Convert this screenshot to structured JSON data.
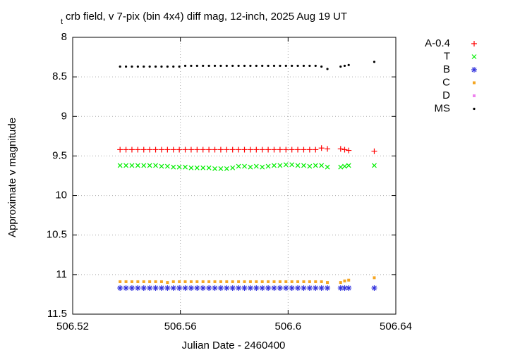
{
  "chart_data": {
    "type": "scatter",
    "title_prefix": "t",
    "title": "crb field, v 7-pix (bin 4x4) diff mag, 12-inch, 2025 Aug 19 UT",
    "x_label": "Julian Date - 2460400",
    "y_label": "Approximate v magnitude",
    "xlim": [
      506.52,
      506.64
    ],
    "xticks": [
      506.52,
      506.56,
      506.6,
      506.64
    ],
    "ylim": [
      11.5,
      8
    ],
    "yticks": [
      8,
      8.5,
      9,
      9.5,
      10,
      10.5,
      11,
      11.5
    ],
    "grid": true,
    "legend_position": "right",
    "x": [
      506.5376,
      506.5398,
      506.542,
      506.5442,
      506.5464,
      506.5486,
      506.5508,
      506.553,
      506.5552,
      506.5574,
      506.5596,
      506.5618,
      506.564,
      506.5662,
      506.5684,
      506.5706,
      506.5728,
      506.575,
      506.5772,
      506.5794,
      506.5816,
      506.5838,
      506.586,
      506.5882,
      506.5904,
      506.5926,
      506.5948,
      506.597,
      506.5992,
      506.6014,
      506.6036,
      506.6058,
      506.608,
      506.6102,
      506.6124,
      506.6146,
      506.6195,
      506.621,
      506.6225,
      506.632
    ],
    "series": [
      {
        "name": "A-0.4",
        "color": "#ff0000",
        "marker": "plus",
        "values": [
          9.42,
          9.42,
          9.42,
          9.42,
          9.42,
          9.42,
          9.42,
          9.42,
          9.42,
          9.42,
          9.42,
          9.42,
          9.42,
          9.42,
          9.42,
          9.42,
          9.42,
          9.42,
          9.42,
          9.42,
          9.42,
          9.42,
          9.42,
          9.42,
          9.42,
          9.42,
          9.42,
          9.42,
          9.42,
          9.42,
          9.42,
          9.42,
          9.42,
          9.42,
          9.4,
          9.41,
          9.41,
          9.42,
          9.43,
          9.44
        ]
      },
      {
        "name": "T",
        "color": "#00ee00",
        "marker": "cross",
        "values": [
          9.62,
          9.62,
          9.62,
          9.62,
          9.62,
          9.62,
          9.62,
          9.63,
          9.63,
          9.64,
          9.64,
          9.64,
          9.65,
          9.65,
          9.65,
          9.65,
          9.66,
          9.66,
          9.66,
          9.65,
          9.63,
          9.63,
          9.64,
          9.63,
          9.64,
          9.63,
          9.62,
          9.62,
          9.61,
          9.61,
          9.62,
          9.62,
          9.63,
          9.62,
          9.62,
          9.64,
          9.64,
          9.63,
          9.62,
          9.62
        ]
      },
      {
        "name": "B",
        "color": "#3333dd",
        "marker": "star",
        "values": [
          11.17,
          11.17,
          11.17,
          11.17,
          11.17,
          11.17,
          11.17,
          11.17,
          11.17,
          11.17,
          11.17,
          11.17,
          11.17,
          11.17,
          11.17,
          11.17,
          11.17,
          11.17,
          11.17,
          11.17,
          11.17,
          11.17,
          11.17,
          11.17,
          11.17,
          11.17,
          11.17,
          11.17,
          11.17,
          11.17,
          11.17,
          11.17,
          11.17,
          11.17,
          11.17,
          11.17,
          11.17,
          11.17,
          11.17,
          11.17
        ]
      },
      {
        "name": "C",
        "color": "#f5a623",
        "marker": "square",
        "values": [
          11.09,
          11.09,
          11.09,
          11.09,
          11.09,
          11.09,
          11.09,
          11.09,
          11.1,
          11.09,
          11.09,
          11.09,
          11.09,
          11.09,
          11.09,
          11.09,
          11.09,
          11.09,
          11.09,
          11.09,
          11.09,
          11.09,
          11.09,
          11.09,
          11.09,
          11.09,
          11.09,
          11.09,
          11.09,
          11.09,
          11.09,
          11.09,
          11.09,
          11.09,
          11.09,
          11.1,
          11.1,
          11.08,
          11.07,
          11.04
        ]
      },
      {
        "name": "D",
        "color": "#ee82ee",
        "marker": "square",
        "values": [
          null,
          null,
          null,
          null,
          null,
          null,
          null,
          null,
          null,
          null,
          null,
          null,
          null,
          null,
          null,
          null,
          null,
          null,
          null,
          null,
          null,
          null,
          null,
          null,
          null,
          null,
          null,
          null,
          null,
          null,
          null,
          null,
          null,
          null,
          null,
          null,
          null,
          null,
          null,
          null
        ]
      },
      {
        "name": "MS",
        "color": "#000000",
        "marker": "dot",
        "values": [
          8.37,
          8.37,
          8.37,
          8.37,
          8.37,
          8.37,
          8.37,
          8.37,
          8.37,
          8.37,
          8.37,
          8.36,
          8.36,
          8.36,
          8.36,
          8.36,
          8.36,
          8.36,
          8.36,
          8.36,
          8.36,
          8.36,
          8.36,
          8.36,
          8.36,
          8.36,
          8.36,
          8.36,
          8.36,
          8.36,
          8.36,
          8.36,
          8.36,
          8.36,
          8.37,
          8.4,
          8.37,
          8.36,
          8.35,
          8.31
        ]
      }
    ]
  }
}
